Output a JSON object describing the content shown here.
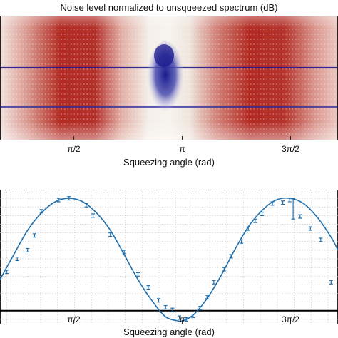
{
  "header": {
    "title": "Noise level normalized to unsqueezed spectrum (dB)"
  },
  "top_panel": {
    "xlabel": "Squeezing angle (rad)",
    "xticks": [
      "π/2",
      "π",
      "3π/2"
    ]
  },
  "bottom_panel": {
    "xlabel": "Squeezing angle (rad)",
    "xticks": [
      "π/2",
      "π",
      "3π/2"
    ]
  },
  "colors": {
    "heatmap_high": "#b22222",
    "heatmap_low": "#1a1a8c",
    "heatmap_mid": "#f4f4f0",
    "fit_line": "#1f6fae",
    "points": "#1f6fae",
    "reference_line": "#000000"
  },
  "chart_data": [
    {
      "type": "heatmap",
      "title": "Noise level normalized to unsqueezed spectrum (dB)",
      "xlabel": "Squeezing angle (rad)",
      "xticks": [
        "π/2",
        "π",
        "3π/2"
      ],
      "xlim": [
        0.5,
        5.4
      ],
      "description_bands": "red anti-squeezed bands with a pale band around π and a blue squeezed region near π"
    },
    {
      "type": "scatter",
      "xlabel": "Squeezing angle (rad)",
      "xticks": [
        "π/2",
        "π",
        "3π/2"
      ],
      "xlim": [
        0.5,
        5.4
      ],
      "ylim": [
        -1.5,
        14
      ],
      "reference_level": 0,
      "grid": true,
      "fit": {
        "name": "",
        "x": [
          0.5,
          0.7,
          0.9,
          1.1,
          1.3,
          1.5,
          1.7,
          1.9,
          2.1,
          2.3,
          2.5,
          2.7,
          2.9,
          3.1,
          3.14,
          3.3,
          3.5,
          3.7,
          3.9,
          4.1,
          4.3,
          4.5,
          4.7,
          4.9,
          5.1,
          5.3,
          5.4
        ],
        "y": [
          3.6,
          6.5,
          9.3,
          11.3,
          12.6,
          13.0,
          12.6,
          11.3,
          9.3,
          6.5,
          3.6,
          1.2,
          -0.7,
          -1.2,
          -1.2,
          -0.5,
          1.4,
          4.0,
          7.0,
          9.7,
          11.6,
          12.8,
          13.0,
          12.4,
          10.8,
          8.5,
          7.0
        ]
      },
      "points": {
        "x": [
          0.6,
          0.75,
          0.9,
          1.0,
          1.1,
          1.35,
          1.5,
          1.75,
          1.85,
          2.1,
          2.3,
          2.5,
          2.65,
          2.8,
          2.9,
          3.0,
          3.1,
          3.2,
          3.3,
          3.4,
          3.5,
          3.6,
          3.75,
          3.85,
          4.0,
          4.1,
          4.2,
          4.3,
          4.45,
          4.6,
          4.7,
          4.75,
          4.85,
          5.0,
          5.15,
          5.3
        ],
        "y": [
          4.5,
          6.0,
          7.0,
          8.7,
          11.5,
          12.8,
          13.0,
          12.2,
          11.0,
          8.8,
          6.8,
          4.2,
          2.7,
          1.2,
          0.4,
          0.1,
          -0.8,
          -1.0,
          -0.6,
          0.3,
          1.6,
          3.3,
          4.8,
          6.3,
          8.0,
          9.5,
          10.4,
          11.2,
          12.4,
          12.5,
          12.8,
          11.8,
          10.9,
          9.5,
          8.2,
          3.3
        ],
        "err": [
          0.2,
          0.2,
          0.2,
          0.2,
          0.2,
          0.2,
          0.2,
          0.2,
          0.2,
          0.2,
          0.2,
          0.2,
          0.2,
          0.2,
          0.2,
          0.2,
          0.2,
          0.2,
          0.2,
          0.2,
          0.2,
          0.2,
          0.2,
          0.2,
          0.2,
          0.2,
          0.2,
          0.2,
          0.2,
          0.2,
          0.2,
          1.2,
          0.2,
          0.2,
          0.2,
          0.2
        ]
      }
    }
  ]
}
